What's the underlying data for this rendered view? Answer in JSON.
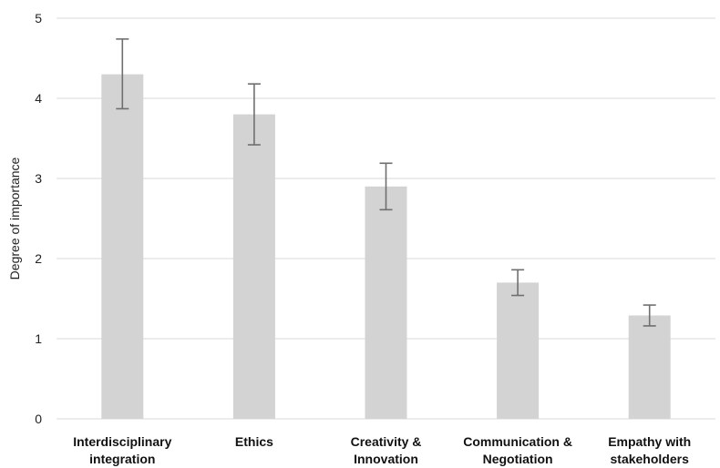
{
  "chart_data": {
    "type": "bar",
    "title": "",
    "xlabel": "",
    "ylabel": "Degree of importance",
    "ylim": [
      0,
      5
    ],
    "yticks": [
      "0",
      "1",
      "2",
      "3",
      "4",
      "5"
    ],
    "grid": true,
    "categories": [
      [
        "Interdisciplinary",
        "integration"
      ],
      [
        "Ethics"
      ],
      [
        "Creativity &",
        "Innovation"
      ],
      [
        "Communication &",
        "Negotiation"
      ],
      [
        "Empathy with",
        "stakeholders"
      ]
    ],
    "values": [
      4.3,
      3.8,
      2.9,
      1.7,
      1.29
    ],
    "error_bars": [
      [
        3.87,
        4.74
      ],
      [
        3.42,
        4.18
      ],
      [
        2.61,
        3.19
      ],
      [
        1.54,
        1.86
      ],
      [
        1.16,
        1.42
      ]
    ],
    "colors": {
      "bar": "#d3d3d3",
      "error_bar": "#6f6f6f",
      "grid": "#d9d9d9"
    }
  }
}
